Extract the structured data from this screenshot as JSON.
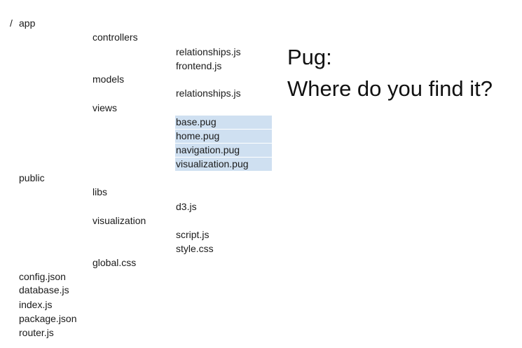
{
  "tree": {
    "root_slash": "/",
    "app": "app",
    "controllers": "controllers",
    "controllers_files": [
      "relationships.js",
      "frontend.js"
    ],
    "models": "models",
    "models_files": [
      "relationships.js"
    ],
    "views": "views",
    "views_files": [
      "base.pug",
      "home.pug",
      "navigation.pug",
      "visualization.pug"
    ],
    "public": "public",
    "libs": "libs",
    "libs_files": [
      "d3.js"
    ],
    "visualization": "visualization",
    "visualization_files": [
      "script.js",
      "style.css"
    ],
    "global_css": "global.css",
    "root_files": [
      "config.json",
      "database.js",
      "index.js",
      "package.json",
      "router.js"
    ]
  },
  "heading": {
    "line1": "Pug:",
    "line2": "Where do you find it?"
  },
  "colors": {
    "highlight": "#cfe0f1"
  }
}
